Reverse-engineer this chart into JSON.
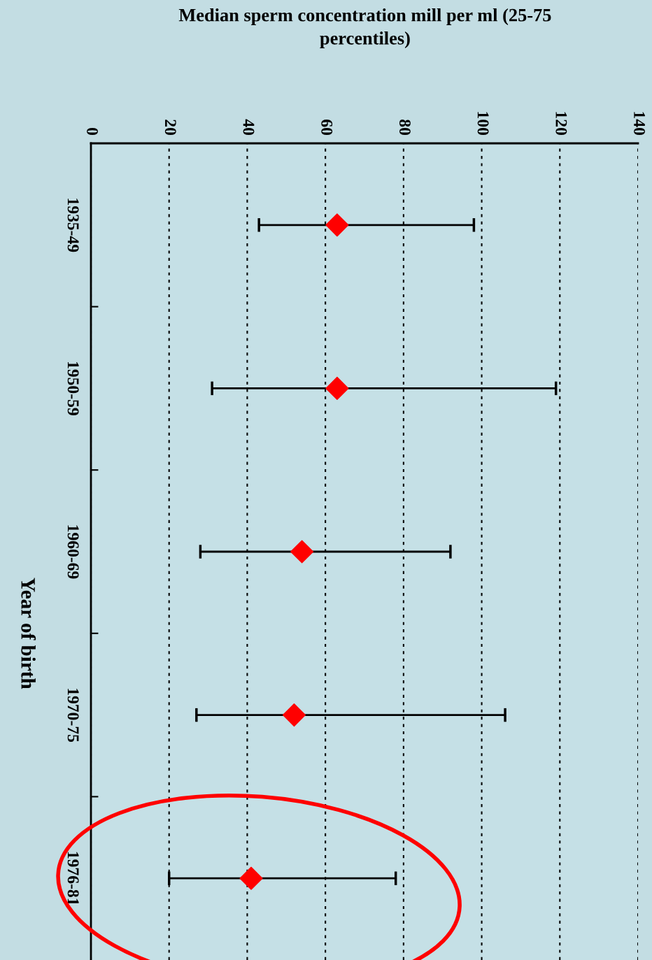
{
  "chart_data": {
    "type": "scatter",
    "orientation": "horizontal",
    "title": "Median sperm concentration mill per ml (25-75\npercentiles)",
    "ylabel": "Year of birth",
    "categories": [
      "1935-49",
      "1950-59",
      "1960-69",
      "1970-75",
      "1976-81"
    ],
    "series": [
      {
        "color": "#ff0000",
        "values": [
          63,
          63,
          54,
          52,
          41
        ],
        "errors": [
          [
            43,
            98
          ],
          [
            31,
            119
          ],
          [
            28,
            92
          ],
          [
            27,
            106
          ],
          [
            20,
            78
          ]
        ]
      }
    ],
    "xlim": [
      0,
      140
    ],
    "xticks": [
      0,
      20,
      40,
      60,
      80,
      100,
      120,
      140
    ],
    "grid": "x",
    "marker": "diamond"
  }
}
